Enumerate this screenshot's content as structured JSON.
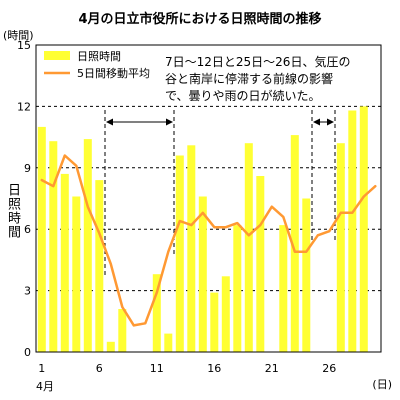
{
  "chart_data": {
    "type": "bar",
    "title": "4月の日立市役所における日照時間の推移",
    "ylabel": "日照時間",
    "y_unit": "(時間)",
    "x_unit": "(日)",
    "x_month_label": "4月",
    "ylim": [
      0,
      15
    ],
    "yticks": [
      0,
      3,
      6,
      9,
      12,
      15
    ],
    "xlim": [
      0.5,
      30.5
    ],
    "xticks": [
      1,
      6,
      11,
      16,
      21,
      26
    ],
    "x": [
      1,
      2,
      3,
      4,
      5,
      6,
      7,
      8,
      9,
      10,
      11,
      12,
      13,
      14,
      15,
      16,
      17,
      18,
      19,
      20,
      21,
      22,
      23,
      24,
      25,
      26,
      27,
      28,
      29,
      30
    ],
    "series": [
      {
        "name": "日照時間",
        "type": "bar",
        "color": "#ffff33",
        "values": [
          11.0,
          10.3,
          8.7,
          7.6,
          10.4,
          8.4,
          0.5,
          2.1,
          0,
          0,
          3.8,
          0.9,
          9.6,
          10.1,
          7.6,
          2.9,
          3.7,
          6.2,
          10.2,
          8.6,
          0,
          6.2,
          10.6,
          7.5,
          0,
          0,
          10.2,
          11.8,
          12.0,
          0
        ]
      },
      {
        "name": "5日間移動平均",
        "type": "line",
        "color": "#ff9933",
        "values": [
          8.4,
          8.1,
          9.6,
          9.1,
          7.1,
          5.8,
          4.3,
          2.2,
          1.3,
          1.4,
          2.9,
          4.9,
          6.4,
          6.2,
          6.8,
          6.1,
          6.1,
          6.3,
          5.7,
          6.2,
          7.1,
          6.6,
          4.9,
          4.9,
          5.7,
          5.9,
          6.8,
          6.8,
          7.6,
          8.1
        ]
      }
    ],
    "grid": "y-dashed",
    "legend": "top-left",
    "annotation": {
      "lines": [
        "7日〜12日と25日〜26日、気圧の",
        "谷と南岸に停滞する前線の影響",
        "で、曇りや雨の日が続いた。"
      ],
      "ranges": [
        [
          7,
          12
        ],
        [
          25,
          26
        ]
      ]
    }
  }
}
